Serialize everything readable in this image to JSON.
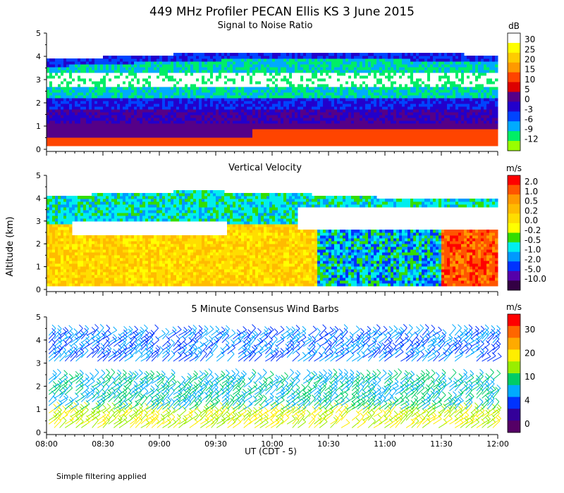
{
  "title": "449 MHz Profiler PECAN Ellis KS   3 June 2015",
  "y_axis_label": "Altitude (km)",
  "x_axis_label": "UT  (CDT - 5)",
  "footer_note": "Simple filtering applied",
  "chart_data": [
    {
      "type": "heatmap",
      "title": "Signal to Noise Ratio",
      "colorbar_unit": "dB",
      "colorbar_levels": [
        "30",
        "25",
        "20",
        "15",
        "10",
        "5",
        "0",
        "-3",
        "-6",
        "-9",
        "-12"
      ],
      "colorbar_colors": [
        "#ffffff",
        "#ffff00",
        "#ffcc00",
        "#ff9900",
        "#ff4400",
        "#dd0000",
        "#550088",
        "#2200cc",
        "#0044ff",
        "#00aaff",
        "#00ee66",
        "#99ff00"
      ],
      "ylim": [
        0,
        5
      ],
      "yticks": [
        "0",
        "1",
        "2",
        "3",
        "4",
        "5"
      ],
      "xlim_hours": [
        8.0,
        12.0
      ],
      "xticks": [
        "08:00",
        "08:30",
        "09:00",
        "09:30",
        "10:00",
        "10:30",
        "11:00",
        "11:30",
        "12:00"
      ]
    },
    {
      "type": "heatmap",
      "title": "Vertical Velocity",
      "colorbar_unit": "m/s",
      "colorbar_levels": [
        "2.0",
        "1.0",
        "0.5",
        "0.2",
        "0.0",
        "-0.2",
        "-0.5",
        "-1.0",
        "-2.0",
        "-5.0",
        "-10.0"
      ],
      "colorbar_colors": [
        "#ff0000",
        "#ff5500",
        "#ff9900",
        "#ffbb00",
        "#ffdd00",
        "#ffff00",
        "#33dd00",
        "#00eeee",
        "#0099ff",
        "#0033ff",
        "#5500aa",
        "#330044"
      ],
      "ylim": [
        0,
        5
      ],
      "yticks": [
        "0",
        "1",
        "2",
        "3",
        "4",
        "5"
      ],
      "xlim_hours": [
        8.0,
        12.0
      ],
      "xticks": [
        "08:00",
        "08:30",
        "09:00",
        "09:30",
        "10:00",
        "10:30",
        "11:00",
        "11:30",
        "12:00"
      ]
    },
    {
      "type": "scatter",
      "title": "5 Minute Consensus Wind Barbs",
      "colorbar_unit": "m/s",
      "colorbar_levels": [
        "30",
        "20",
        "10",
        "4",
        "0"
      ],
      "colorbar_colors": [
        "#ff0000",
        "#ff6600",
        "#ffaa00",
        "#ffee00",
        "#99ee00",
        "#00cc66",
        "#00aaff",
        "#0033ff",
        "#330099",
        "#550066"
      ],
      "ylim": [
        0,
        5
      ],
      "yticks": [
        "0",
        "1",
        "2",
        "3",
        "4",
        "5"
      ],
      "xlim_hours": [
        8.0,
        12.0
      ],
      "xticks": [
        "08:00",
        "08:30",
        "09:00",
        "09:30",
        "10:00",
        "10:30",
        "11:00",
        "11:30",
        "12:00"
      ]
    }
  ]
}
